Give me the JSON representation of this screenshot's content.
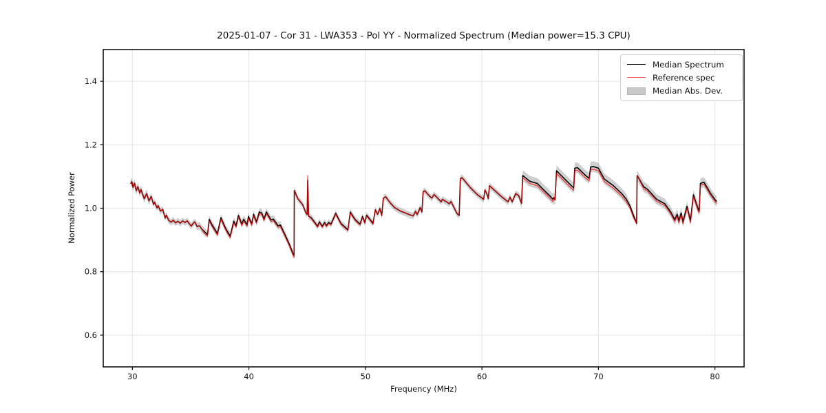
{
  "figure": {
    "title": "2025-01-07 - Cor 31 - LWA353 - Pol YY - Normalized Spectrum (Median power=15.3 CPU)",
    "background": "#ffffff"
  },
  "legend": {
    "position": "upper right",
    "items": [
      {
        "label": "Median Spectrum",
        "type": "line",
        "color": "#000000"
      },
      {
        "label": "Reference spec",
        "type": "line",
        "color": "#ff5a5a"
      },
      {
        "label": "Median Abs. Dev.",
        "type": "patch",
        "color": "#c9c9c9"
      }
    ]
  },
  "chart_data": {
    "type": "line",
    "title": "2025-01-07 - Cor 31 - LWA353 - Pol YY - Normalized Spectrum (Median power=15.3 CPU)",
    "xlabel": "Frequency (MHz)",
    "ylabel": "Normalized Power",
    "xlim": [
      27.5,
      82.5
    ],
    "ylim": [
      0.5,
      1.5
    ],
    "xticks": [
      30,
      40,
      50,
      60,
      70,
      80
    ],
    "yticks": [
      0.6,
      0.8,
      1.0,
      1.2,
      1.4
    ],
    "grid": true,
    "grid_color": "#e4e4e4",
    "frame_color": "#000000",
    "legend_position": "upper right",
    "series": [
      {
        "name": "Median Spectrum",
        "type": "line",
        "color": "#000000",
        "linewidth": 1.6,
        "points": [
          [
            29.85,
            1.077
          ],
          [
            29.95,
            1.084
          ],
          [
            30.05,
            1.066
          ],
          [
            30.18,
            1.079
          ],
          [
            30.33,
            1.055
          ],
          [
            30.47,
            1.068
          ],
          [
            30.63,
            1.048
          ],
          [
            30.73,
            1.059
          ],
          [
            31.02,
            1.03
          ],
          [
            31.22,
            1.046
          ],
          [
            31.42,
            1.023
          ],
          [
            31.62,
            1.037
          ],
          [
            31.81,
            1.012
          ],
          [
            31.91,
            1.019
          ],
          [
            32.11,
            1.001
          ],
          [
            32.21,
            1.008
          ],
          [
            32.41,
            0.991
          ],
          [
            32.61,
            0.996
          ],
          [
            32.81,
            0.969
          ],
          [
            32.91,
            0.978
          ],
          [
            33.11,
            0.962
          ],
          [
            33.31,
            0.956
          ],
          [
            33.51,
            0.962
          ],
          [
            33.71,
            0.954
          ],
          [
            33.91,
            0.959
          ],
          [
            34.11,
            0.953
          ],
          [
            34.31,
            0.96
          ],
          [
            34.51,
            0.955
          ],
          [
            34.71,
            0.96
          ],
          [
            34.91,
            0.95
          ],
          [
            35.06,
            0.944
          ],
          [
            35.21,
            0.952
          ],
          [
            35.36,
            0.957
          ],
          [
            35.56,
            0.942
          ],
          [
            35.76,
            0.945
          ],
          [
            35.96,
            0.934
          ],
          [
            36.16,
            0.927
          ],
          [
            36.45,
            0.917
          ],
          [
            36.6,
            0.965
          ],
          [
            36.8,
            0.95
          ],
          [
            37.0,
            0.938
          ],
          [
            37.3,
            0.92
          ],
          [
            37.6,
            0.97
          ],
          [
            37.9,
            0.945
          ],
          [
            38.1,
            0.93
          ],
          [
            38.4,
            0.912
          ],
          [
            38.7,
            0.959
          ],
          [
            38.9,
            0.945
          ],
          [
            39.1,
            0.977
          ],
          [
            39.4,
            0.95
          ],
          [
            39.55,
            0.965
          ],
          [
            39.85,
            0.948
          ],
          [
            39.96,
            0.974
          ],
          [
            40.25,
            0.951
          ],
          [
            40.4,
            0.981
          ],
          [
            40.65,
            0.957
          ],
          [
            40.9,
            0.988
          ],
          [
            41.1,
            0.985
          ],
          [
            41.3,
            0.966
          ],
          [
            41.5,
            0.988
          ],
          [
            41.9,
            0.963
          ],
          [
            42.1,
            0.966
          ],
          [
            42.5,
            0.945
          ],
          [
            42.7,
            0.947
          ],
          [
            43.05,
            0.92
          ],
          [
            43.45,
            0.888
          ],
          [
            43.8,
            0.856
          ],
          [
            43.88,
            0.852
          ],
          [
            43.9,
            1.056
          ],
          [
            44.2,
            1.03
          ],
          [
            44.6,
            1.012
          ],
          [
            44.9,
            0.985
          ],
          [
            45.0,
            0.98
          ],
          [
            45.05,
            1.088
          ],
          [
            45.12,
            0.975
          ],
          [
            45.35,
            0.97
          ],
          [
            45.9,
            0.943
          ],
          [
            46.05,
            0.957
          ],
          [
            46.3,
            0.943
          ],
          [
            46.5,
            0.955
          ],
          [
            46.65,
            0.945
          ],
          [
            46.85,
            0.955
          ],
          [
            47.05,
            0.95
          ],
          [
            47.45,
            0.984
          ],
          [
            47.9,
            0.952
          ],
          [
            48.5,
            0.932
          ],
          [
            48.7,
            0.988
          ],
          [
            49.1,
            0.965
          ],
          [
            49.3,
            0.958
          ],
          [
            49.55,
            0.95
          ],
          [
            49.75,
            0.974
          ],
          [
            49.95,
            0.955
          ],
          [
            50.1,
            0.978
          ],
          [
            50.45,
            0.962
          ],
          [
            50.65,
            0.952
          ],
          [
            50.85,
            0.995
          ],
          [
            51.05,
            0.981
          ],
          [
            51.24,
            0.999
          ],
          [
            51.4,
            0.977
          ],
          [
            51.54,
            1.031
          ],
          [
            51.74,
            1.036
          ],
          [
            52.13,
            1.017
          ],
          [
            52.5,
            1.002
          ],
          [
            53.0,
            0.991
          ],
          [
            53.5,
            0.984
          ],
          [
            53.9,
            0.978
          ],
          [
            54.1,
            0.976
          ],
          [
            54.3,
            0.99
          ],
          [
            54.45,
            0.98
          ],
          [
            54.7,
            1.002
          ],
          [
            54.85,
            0.988
          ],
          [
            54.95,
            1.052
          ],
          [
            55.1,
            1.055
          ],
          [
            55.5,
            1.038
          ],
          [
            55.7,
            1.032
          ],
          [
            55.9,
            1.043
          ],
          [
            56.2,
            1.032
          ],
          [
            56.5,
            1.02
          ],
          [
            56.6,
            1.028
          ],
          [
            57.0,
            1.019
          ],
          [
            57.2,
            1.014
          ],
          [
            57.35,
            1.021
          ],
          [
            57.85,
            0.984
          ],
          [
            58.05,
            0.977
          ],
          [
            58.15,
            1.094
          ],
          [
            58.3,
            1.096
          ],
          [
            59.0,
            1.065
          ],
          [
            59.6,
            1.043
          ],
          [
            60.15,
            1.028
          ],
          [
            60.25,
            1.057
          ],
          [
            60.4,
            1.048
          ],
          [
            60.55,
            1.03
          ],
          [
            60.65,
            1.071
          ],
          [
            61.6,
            1.039
          ],
          [
            62.1,
            1.024
          ],
          [
            62.25,
            1.02
          ],
          [
            62.4,
            1.035
          ],
          [
            62.6,
            1.02
          ],
          [
            62.9,
            1.046
          ],
          [
            63.15,
            1.04
          ],
          [
            63.4,
            1.015
          ],
          [
            63.5,
            1.103
          ],
          [
            64.1,
            1.085
          ],
          [
            64.75,
            1.078
          ],
          [
            65.35,
            1.056
          ],
          [
            65.85,
            1.038
          ],
          [
            66.1,
            1.028
          ],
          [
            66.18,
            1.034
          ],
          [
            66.28,
            1.026
          ],
          [
            66.4,
            1.118
          ],
          [
            67.1,
            1.092
          ],
          [
            67.7,
            1.07
          ],
          [
            67.88,
            1.064
          ],
          [
            67.97,
            1.126
          ],
          [
            68.2,
            1.128
          ],
          [
            68.9,
            1.103
          ],
          [
            69.2,
            1.094
          ],
          [
            69.33,
            1.13
          ],
          [
            69.6,
            1.131
          ],
          [
            70.0,
            1.126
          ],
          [
            70.5,
            1.092
          ],
          [
            71.25,
            1.072
          ],
          [
            72.0,
            1.046
          ],
          [
            72.4,
            1.028
          ],
          [
            72.7,
            1.008
          ],
          [
            73.0,
            0.978
          ],
          [
            73.28,
            0.952
          ],
          [
            73.32,
            1.103
          ],
          [
            73.9,
            1.067
          ],
          [
            74.2,
            1.06
          ],
          [
            75.0,
            1.028
          ],
          [
            75.7,
            1.014
          ],
          [
            76.2,
            0.988
          ],
          [
            76.55,
            0.964
          ],
          [
            76.75,
            0.981
          ],
          [
            76.9,
            0.96
          ],
          [
            77.1,
            0.985
          ],
          [
            77.25,
            0.957
          ],
          [
            77.6,
            1.006
          ],
          [
            77.9,
            0.96
          ],
          [
            78.15,
            1.042
          ],
          [
            78.55,
            0.999
          ],
          [
            78.65,
            0.991
          ],
          [
            78.75,
            1.078
          ],
          [
            79.05,
            1.082
          ],
          [
            79.3,
            1.067
          ],
          [
            79.6,
            1.048
          ],
          [
            80.0,
            1.027
          ],
          [
            80.15,
            1.021
          ]
        ]
      },
      {
        "name": "Reference spec",
        "type": "line",
        "color": "rgba(255,0,0,0.72)",
        "linewidth": 1.3,
        "derived_from": "Median Spectrum",
        "offset_ranges": [
          [
            36.0,
            43.89,
            -0.005
          ],
          [
            45.2,
            50.8,
            -0.003
          ],
          [
            63.5,
            66.1,
            -0.007
          ],
          [
            66.3,
            73.25,
            -0.008
          ],
          [
            73.35,
            80.15,
            -0.006
          ]
        ],
        "overrides": [
          [
            43.88,
            0.845
          ],
          [
            45.05,
            1.103
          ]
        ]
      },
      {
        "name": "Median Abs. Dev.",
        "type": "band",
        "around": "Median Spectrum",
        "fill": "rgba(128,128,128,0.38)",
        "halfwidth_default": 0.01,
        "halfwidth_ranges": [
          [
            29.8,
            31.6,
            0.013
          ],
          [
            35.4,
            44.0,
            0.012
          ],
          [
            63.4,
            72.6,
            0.017
          ],
          [
            73.3,
            80.2,
            0.016
          ]
        ]
      }
    ]
  }
}
